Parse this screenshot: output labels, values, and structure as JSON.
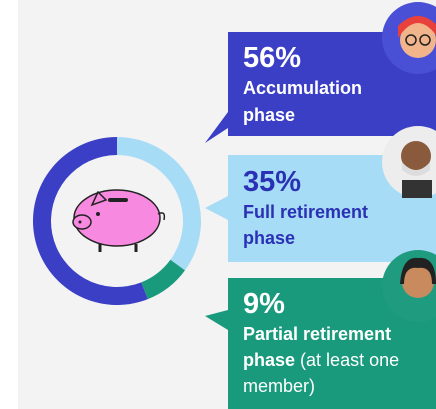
{
  "chart_data": {
    "type": "donut",
    "categories": [
      "Accumulation phase",
      "Full retirement phase",
      "Partial retirement phase"
    ],
    "values": [
      56,
      35,
      9
    ],
    "value_labels": [
      "56%",
      "35%",
      "9%"
    ],
    "colors": [
      "#3a3fc6",
      "#a6dcf6",
      "#1a9a7c"
    ],
    "annotation": "(at least one member)"
  }
}
